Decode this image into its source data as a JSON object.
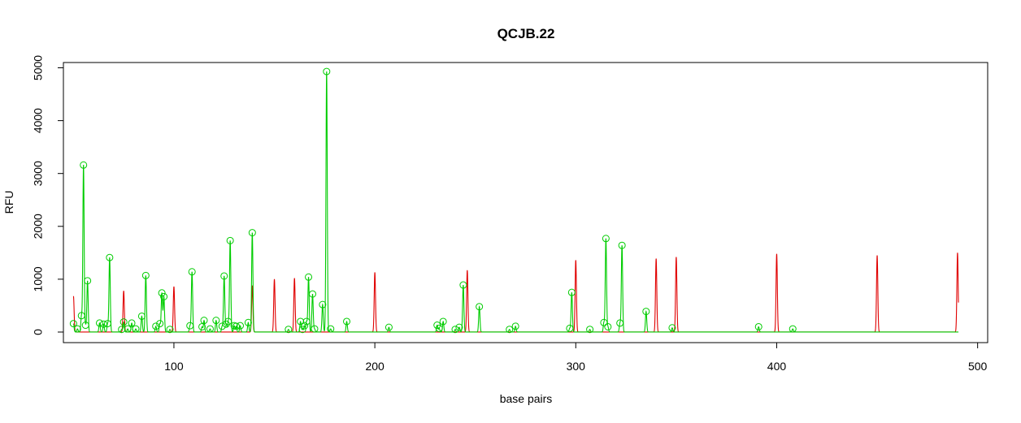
{
  "chart_data": {
    "type": "line",
    "title": "QCJB.22",
    "xlabel": "base pairs",
    "ylabel": "RFU",
    "xlim": [
      45,
      505
    ],
    "ylim": [
      -200,
      5100
    ],
    "xticks": [
      100,
      200,
      300,
      400,
      500
    ],
    "yticks": [
      0,
      1000,
      2000,
      3000,
      4000,
      5000
    ],
    "grid": false,
    "colors": {
      "sample": "#00CC00",
      "ladder": "#E00000",
      "marker": "#00CC00"
    },
    "series": [
      {
        "role": "ladder",
        "color": "#E00000",
        "peaks": [
          {
            "x": 50,
            "y": 680
          },
          {
            "x": 75,
            "y": 780
          },
          {
            "x": 100,
            "y": 860
          },
          {
            "x": 139,
            "y": 880
          },
          {
            "x": 150,
            "y": 1000
          },
          {
            "x": 160,
            "y": 1020
          },
          {
            "x": 200,
            "y": 1130
          },
          {
            "x": 246,
            "y": 1170
          },
          {
            "x": 300,
            "y": 1360
          },
          {
            "x": 340,
            "y": 1390
          },
          {
            "x": 350,
            "y": 1420
          },
          {
            "x": 400,
            "y": 1480
          },
          {
            "x": 450,
            "y": 1450
          },
          {
            "x": 490,
            "y": 1500
          }
        ]
      },
      {
        "role": "sample",
        "color": "#00CC00",
        "peaks": [
          {
            "x": 50,
            "y": 160
          },
          {
            "x": 52,
            "y": 60
          },
          {
            "x": 54,
            "y": 310
          },
          {
            "x": 55,
            "y": 3160
          },
          {
            "x": 56,
            "y": 130
          },
          {
            "x": 57,
            "y": 970
          },
          {
            "x": 63,
            "y": 170
          },
          {
            "x": 65,
            "y": 150
          },
          {
            "x": 67,
            "y": 160
          },
          {
            "x": 68,
            "y": 1410
          },
          {
            "x": 74,
            "y": 50
          },
          {
            "x": 75,
            "y": 190
          },
          {
            "x": 77,
            "y": 60
          },
          {
            "x": 79,
            "y": 170
          },
          {
            "x": 81,
            "y": 60
          },
          {
            "x": 84,
            "y": 300
          },
          {
            "x": 86,
            "y": 1070
          },
          {
            "x": 91,
            "y": 110
          },
          {
            "x": 93,
            "y": 160
          },
          {
            "x": 94,
            "y": 740
          },
          {
            "x": 95,
            "y": 670
          },
          {
            "x": 98,
            "y": 50
          },
          {
            "x": 108,
            "y": 120
          },
          {
            "x": 109,
            "y": 1140
          },
          {
            "x": 114,
            "y": 100
          },
          {
            "x": 115,
            "y": 220
          },
          {
            "x": 118,
            "y": 60
          },
          {
            "x": 121,
            "y": 220
          },
          {
            "x": 124,
            "y": 110
          },
          {
            "x": 125,
            "y": 1060
          },
          {
            "x": 126,
            "y": 150
          },
          {
            "x": 127,
            "y": 200
          },
          {
            "x": 128,
            "y": 1730
          },
          {
            "x": 130,
            "y": 120
          },
          {
            "x": 131,
            "y": 110
          },
          {
            "x": 133,
            "y": 120
          },
          {
            "x": 137,
            "y": 180
          },
          {
            "x": 139,
            "y": 1880
          },
          {
            "x": 157,
            "y": 50
          },
          {
            "x": 163,
            "y": 200
          },
          {
            "x": 164,
            "y": 50
          },
          {
            "x": 165,
            "y": 120
          },
          {
            "x": 166,
            "y": 200
          },
          {
            "x": 167,
            "y": 1040
          },
          {
            "x": 169,
            "y": 720
          },
          {
            "x": 170,
            "y": 60
          },
          {
            "x": 174,
            "y": 520
          },
          {
            "x": 176,
            "y": 4930
          },
          {
            "x": 178,
            "y": 60
          },
          {
            "x": 186,
            "y": 200
          },
          {
            "x": 207,
            "y": 90
          },
          {
            "x": 231,
            "y": 130
          },
          {
            "x": 232,
            "y": 70
          },
          {
            "x": 234,
            "y": 200
          },
          {
            "x": 240,
            "y": 50
          },
          {
            "x": 242,
            "y": 90
          },
          {
            "x": 244,
            "y": 890
          },
          {
            "x": 252,
            "y": 480
          },
          {
            "x": 267,
            "y": 50
          },
          {
            "x": 270,
            "y": 110
          },
          {
            "x": 297,
            "y": 70
          },
          {
            "x": 298,
            "y": 750
          },
          {
            "x": 307,
            "y": 50
          },
          {
            "x": 314,
            "y": 180
          },
          {
            "x": 315,
            "y": 1770
          },
          {
            "x": 316,
            "y": 100
          },
          {
            "x": 322,
            "y": 170
          },
          {
            "x": 323,
            "y": 1640
          },
          {
            "x": 335,
            "y": 390
          },
          {
            "x": 348,
            "y": 80
          },
          {
            "x": 391,
            "y": 100
          },
          {
            "x": 408,
            "y": 60
          }
        ]
      }
    ]
  }
}
